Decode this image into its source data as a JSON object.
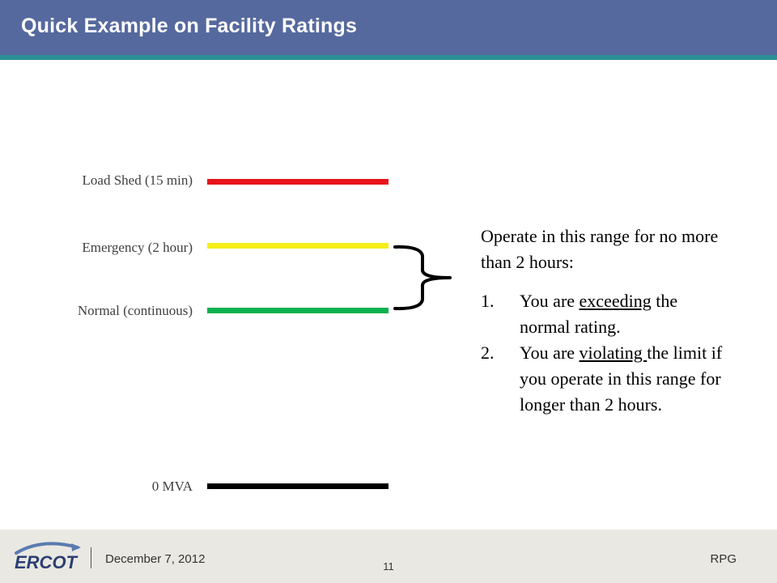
{
  "slide": {
    "title": "Quick Example on Facility Ratings"
  },
  "ratings": [
    {
      "label": "Load Shed (15 min)",
      "color": "#e8141b"
    },
    {
      "label": "Emergency (2 hour)",
      "color": "#f5ee1a"
    },
    {
      "label": "Normal (continuous)",
      "color": "#0bb14e"
    },
    {
      "label": "0 MVA",
      "color": "#000000"
    }
  ],
  "note": {
    "intro": "Operate in this range for no more than 2 hours:",
    "items": [
      {
        "number": "1.",
        "before": "You are ",
        "underlined": "exceeding",
        "after": " the normal rating."
      },
      {
        "number": "2.",
        "before": "You are ",
        "underlined": "violating ",
        "after": "the limit if you operate in this range for longer than 2 hours."
      }
    ]
  },
  "footer": {
    "logo_text": "ERCOT",
    "date": "December 7, 2012",
    "page": "11",
    "right": "RPG"
  }
}
